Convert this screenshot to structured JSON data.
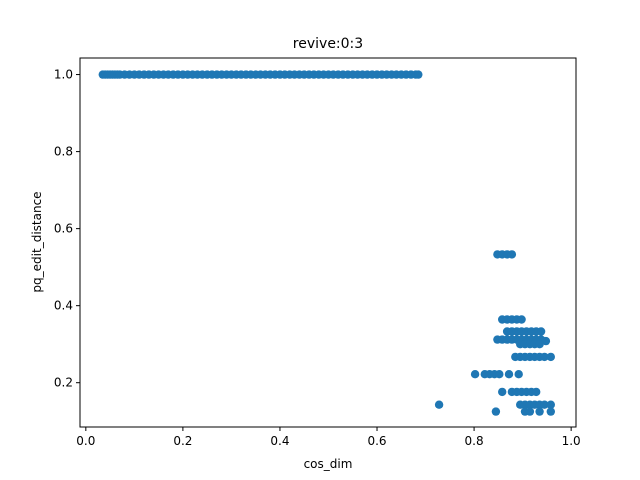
{
  "chart_data": {
    "type": "scatter",
    "title": "revive:0:3",
    "xlabel": "cos_dim",
    "ylabel": "pq_edit_distance",
    "xlim": [
      -0.012,
      1.01
    ],
    "ylim": [
      0.085,
      1.043
    ],
    "xticks": [
      0.0,
      0.2,
      0.4,
      0.6,
      0.8,
      1.0
    ],
    "xtick_labels": [
      "0.0",
      "0.2",
      "0.4",
      "0.6",
      "0.8",
      "1.0"
    ],
    "yticks": [
      0.2,
      0.4,
      0.6,
      0.8,
      1.0
    ],
    "ytick_labels": [
      "0.2",
      "0.4",
      "0.6",
      "0.8",
      "1.0"
    ],
    "grid": false,
    "marker_color": "#1f77b4",
    "series": [
      {
        "x": [
          0.035,
          0.04,
          0.045,
          0.05,
          0.055,
          0.06,
          0.065,
          0.07,
          0.08,
          0.09,
          0.1,
          0.11,
          0.12,
          0.13,
          0.14,
          0.15,
          0.16,
          0.17,
          0.18,
          0.19,
          0.2,
          0.21,
          0.22,
          0.23,
          0.24,
          0.25,
          0.26,
          0.27,
          0.28,
          0.29,
          0.3,
          0.31,
          0.32,
          0.33,
          0.34,
          0.35,
          0.36,
          0.37,
          0.38,
          0.39,
          0.4,
          0.41,
          0.42,
          0.43,
          0.44,
          0.45,
          0.46,
          0.47,
          0.48,
          0.49,
          0.5,
          0.51,
          0.52,
          0.53,
          0.54,
          0.55,
          0.56,
          0.57,
          0.58,
          0.59,
          0.6,
          0.61,
          0.62,
          0.63,
          0.64,
          0.65,
          0.66,
          0.67,
          0.68,
          0.685,
          0.848,
          0.858,
          0.868,
          0.878,
          0.858,
          0.868,
          0.878,
          0.888,
          0.898,
          0.868,
          0.878,
          0.888,
          0.898,
          0.908,
          0.918,
          0.928,
          0.938,
          0.848,
          0.858,
          0.868,
          0.878,
          0.888,
          0.898,
          0.908,
          0.918,
          0.928,
          0.938,
          0.948,
          0.895,
          0.905,
          0.915,
          0.925,
          0.935,
          0.885,
          0.895,
          0.905,
          0.915,
          0.925,
          0.935,
          0.945,
          0.958,
          0.802,
          0.822,
          0.832,
          0.842,
          0.852,
          0.872,
          0.892,
          0.858,
          0.878,
          0.888,
          0.898,
          0.908,
          0.918,
          0.928,
          0.895,
          0.905,
          0.915,
          0.925,
          0.935,
          0.945,
          0.958,
          0.728,
          0.845,
          0.905,
          0.915,
          0.935,
          0.958
        ],
        "y": [
          1,
          1,
          1,
          1,
          1,
          1,
          1,
          1,
          1,
          1,
          1,
          1,
          1,
          1,
          1,
          1,
          1,
          1,
          1,
          1,
          1,
          1,
          1,
          1,
          1,
          1,
          1,
          1,
          1,
          1,
          1,
          1,
          1,
          1,
          1,
          1,
          1,
          1,
          1,
          1,
          1,
          1,
          1,
          1,
          1,
          1,
          1,
          1,
          1,
          1,
          1,
          1,
          1,
          1,
          1,
          1,
          1,
          1,
          1,
          1,
          1,
          1,
          1,
          1,
          1,
          1,
          1,
          1,
          1,
          1,
          0.533,
          0.533,
          0.533,
          0.533,
          0.364,
          0.364,
          0.364,
          0.364,
          0.364,
          0.333,
          0.333,
          0.333,
          0.333,
          0.333,
          0.333,
          0.333,
          0.333,
          0.312,
          0.312,
          0.312,
          0.312,
          0.312,
          0.312,
          0.312,
          0.312,
          0.312,
          0.312,
          0.308,
          0.3,
          0.3,
          0.3,
          0.3,
          0.3,
          0.267,
          0.267,
          0.267,
          0.267,
          0.267,
          0.267,
          0.267,
          0.267,
          0.222,
          0.222,
          0.222,
          0.222,
          0.222,
          0.222,
          0.222,
          0.176,
          0.176,
          0.176,
          0.176,
          0.176,
          0.176,
          0.176,
          0.143,
          0.143,
          0.143,
          0.143,
          0.143,
          0.143,
          0.143,
          0.143,
          0.125,
          0.125,
          0.125,
          0.125,
          0.125
        ]
      }
    ]
  }
}
